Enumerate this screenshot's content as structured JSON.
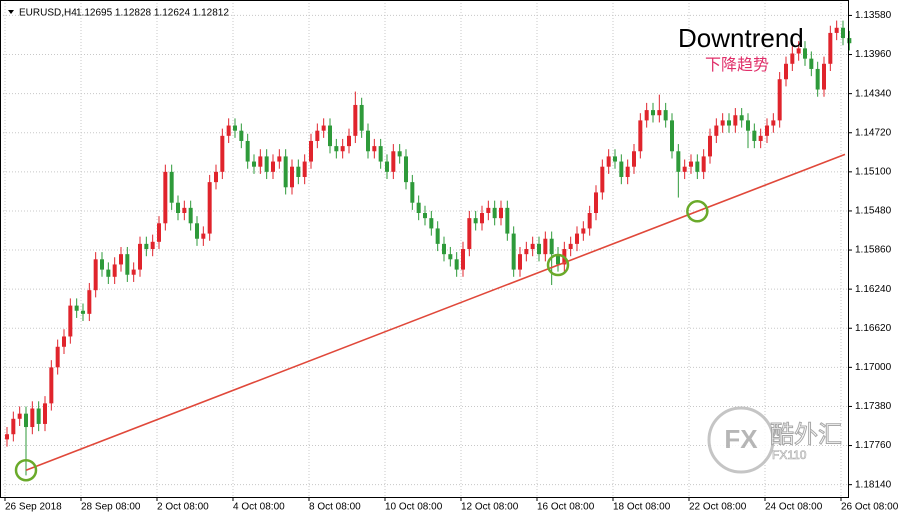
{
  "chart_data": {
    "type": "candlestick",
    "symbol": "EURUSD,H4",
    "quote": "1.12695 1.12828 1.12624 1.12812",
    "annotation": "Downtrend",
    "annotation_cn": "下降趋势",
    "watermark_logo": "FX",
    "watermark_name": "酷外汇",
    "watermark_site": "FX110",
    "up_color": "#2e9a3a",
    "down_color": "#e0242c",
    "trend_color": "#e0483a",
    "grid": true,
    "ylim": [
      1.1343,
      1.1826
    ],
    "yticks": [
      {
        "value": 1.1814,
        "label": "1.18140"
      },
      {
        "value": 1.1776,
        "label": "1.17760"
      },
      {
        "value": 1.1738,
        "label": "1.17380"
      },
      {
        "value": 1.17,
        "label": "1.17000"
      },
      {
        "value": 1.1662,
        "label": "1.16620"
      },
      {
        "value": 1.1624,
        "label": "1.16240"
      },
      {
        "value": 1.1586,
        "label": "1.15860"
      },
      {
        "value": 1.1548,
        "label": "1.15480"
      },
      {
        "value": 1.151,
        "label": "1.15100"
      },
      {
        "value": 1.1472,
        "label": "1.14720"
      },
      {
        "value": 1.1434,
        "label": "1.14340"
      },
      {
        "value": 1.1396,
        "label": "1.13960"
      },
      {
        "value": 1.1358,
        "label": "1.13580"
      }
    ],
    "trendline": {
      "start": 1.18,
      "end": 1.1493
    },
    "categories": [
      "26 Sep 2018",
      null,
      null,
      null,
      null,
      null,
      null,
      null,
      null,
      null,
      null,
      null,
      "28 Sep 08:00",
      null,
      null,
      null,
      null,
      null,
      null,
      null,
      null,
      null,
      null,
      null,
      "2 Oct 08:00",
      null,
      null,
      null,
      null,
      null,
      null,
      null,
      null,
      null,
      null,
      null,
      "4 Oct 08:00",
      null,
      null,
      null,
      null,
      null,
      null,
      null,
      null,
      null,
      null,
      null,
      "8 Oct 08:00",
      null,
      null,
      null,
      null,
      null,
      null,
      null,
      null,
      null,
      null,
      null,
      "10 Oct 08:00",
      null,
      null,
      null,
      null,
      null,
      null,
      null,
      null,
      null,
      null,
      null,
      "12 Oct 08:00",
      null,
      null,
      null,
      null,
      null,
      null,
      null,
      null,
      null,
      null,
      null,
      "16 Oct 08:00",
      null,
      null,
      null,
      null,
      null,
      null,
      null,
      null,
      null,
      null,
      null,
      "18 Oct 08:00",
      null,
      null,
      null,
      null,
      null,
      null,
      null,
      null,
      null,
      null,
      null,
      "22 Oct 08:00",
      null,
      null,
      null,
      null,
      null,
      null,
      null,
      null,
      null,
      null,
      null,
      "24 Oct 08:00",
      null,
      null,
      null,
      null,
      null,
      null,
      null,
      null,
      null,
      null,
      null,
      "26 Oct 08:00",
      null
    ],
    "open": [
      1.177,
      1.1765,
      1.175,
      1.1745,
      1.1758,
      1.174,
      1.1755,
      1.1735,
      1.17,
      1.168,
      1.167,
      1.164,
      1.1645,
      1.1648,
      1.1625,
      1.1595,
      1.1605,
      1.1612,
      1.16,
      1.159,
      1.161,
      1.1605,
      1.158,
      1.1585,
      1.1578,
      1.156,
      1.151,
      1.154,
      1.155,
      1.1545,
      1.156,
      1.1575,
      1.157,
      1.152,
      1.151,
      1.1475,
      1.1465,
      1.147,
      1.148,
      1.15,
      1.1505,
      1.1495,
      1.151,
      1.15,
      1.1495,
      1.1525,
      1.1505,
      1.1515,
      1.15,
      1.148,
      1.147,
      1.1465,
      1.1485,
      1.149,
      1.1485,
      1.1475,
      1.1445,
      1.147,
      1.149,
      1.1485,
      1.15,
      1.151,
      1.149,
      1.1495,
      1.152,
      1.154,
      1.155,
      1.1555,
      1.1565,
      1.158,
      1.159,
      1.1595,
      1.1605,
      1.1585,
      1.1555,
      1.156,
      1.155,
      1.1545,
      1.1555,
      1.1545,
      1.157,
      1.1605,
      1.159,
      1.1585,
      1.158,
      1.159,
      1.1575,
      1.159,
      1.16,
      1.1585,
      1.158,
      1.157,
      1.1565,
      1.155,
      1.153,
      1.1505,
      1.1495,
      1.15,
      1.1515,
      1.1505,
      1.149,
      1.146,
      1.145,
      1.1455,
      1.145,
      1.146,
      1.149,
      1.151,
      1.1505,
      1.15,
      1.151,
      1.1495,
      1.1475,
      1.1465,
      1.146,
      1.1465,
      1.1455,
      1.146,
      1.147,
      1.148,
      1.1475,
      1.1465,
      1.146,
      1.142,
      1.1405,
      1.1395,
      1.139,
      1.14,
      1.141,
      1.143,
      1.1405,
      1.1375,
      1.137,
      1.138
    ],
    "close": [
      1.1765,
      1.175,
      1.1745,
      1.1758,
      1.174,
      1.1755,
      1.1735,
      1.17,
      1.168,
      1.167,
      1.164,
      1.1645,
      1.1648,
      1.1625,
      1.1595,
      1.1605,
      1.1612,
      1.16,
      1.159,
      1.161,
      1.1605,
      1.158,
      1.1585,
      1.1578,
      1.156,
      1.151,
      1.154,
      1.155,
      1.1545,
      1.156,
      1.1575,
      1.157,
      1.152,
      1.151,
      1.1475,
      1.1465,
      1.147,
      1.148,
      1.15,
      1.1505,
      1.1495,
      1.151,
      1.15,
      1.1495,
      1.1525,
      1.1505,
      1.1515,
      1.15,
      1.148,
      1.147,
      1.1465,
      1.1485,
      1.149,
      1.1485,
      1.1475,
      1.1445,
      1.147,
      1.149,
      1.1485,
      1.15,
      1.151,
      1.149,
      1.1495,
      1.152,
      1.154,
      1.155,
      1.1555,
      1.1565,
      1.158,
      1.159,
      1.1595,
      1.1605,
      1.1585,
      1.1555,
      1.156,
      1.155,
      1.1545,
      1.1555,
      1.1545,
      1.157,
      1.1605,
      1.159,
      1.1585,
      1.158,
      1.159,
      1.1575,
      1.159,
      1.16,
      1.1585,
      1.158,
      1.157,
      1.1565,
      1.155,
      1.153,
      1.1505,
      1.1495,
      1.15,
      1.1515,
      1.1505,
      1.149,
      1.146,
      1.145,
      1.1455,
      1.145,
      1.146,
      1.149,
      1.151,
      1.1505,
      1.15,
      1.151,
      1.1495,
      1.1475,
      1.1465,
      1.146,
      1.1465,
      1.1455,
      1.146,
      1.147,
      1.148,
      1.1475,
      1.1465,
      1.146,
      1.142,
      1.1405,
      1.1395,
      1.139,
      1.14,
      1.141,
      1.143,
      1.1405,
      1.1375,
      1.137,
      1.138,
      1.1385
    ],
    "high": [
      1.1777,
      1.1772,
      1.1757,
      1.1805,
      1.1765,
      1.1762,
      1.1762,
      1.1742,
      1.1707,
      1.1687,
      1.1677,
      1.1652,
      1.1655,
      1.1655,
      1.1632,
      1.1612,
      1.1619,
      1.1619,
      1.1607,
      1.1617,
      1.1617,
      1.1612,
      1.1592,
      1.1592,
      1.1585,
      1.1567,
      1.1547,
      1.1557,
      1.1557,
      1.1567,
      1.1582,
      1.1582,
      1.1577,
      1.1527,
      1.1517,
      1.1482,
      1.1477,
      1.1487,
      1.1507,
      1.1512,
      1.1512,
      1.1517,
      1.1517,
      1.1507,
      1.1532,
      1.1532,
      1.1522,
      1.1522,
      1.1507,
      1.1487,
      1.1477,
      1.1492,
      1.1497,
      1.1497,
      1.1492,
      1.1482,
      1.1477,
      1.1497,
      1.1497,
      1.1507,
      1.1517,
      1.1517,
      1.1502,
      1.1527,
      1.1547,
      1.1557,
      1.1562,
      1.1572,
      1.1587,
      1.1597,
      1.1602,
      1.1612,
      1.1612,
      1.1592,
      1.1567,
      1.1567,
      1.1557,
      1.1562,
      1.1562,
      1.1577,
      1.1612,
      1.1612,
      1.1597,
      1.1592,
      1.1597,
      1.1597,
      1.162,
      1.1607,
      1.1607,
      1.1592,
      1.1587,
      1.1577,
      1.1572,
      1.1557,
      1.1537,
      1.1512,
      1.1507,
      1.1522,
      1.1522,
      1.1512,
      1.1497,
      1.1467,
      1.1462,
      1.1462,
      1.1467,
      1.1497,
      1.1535,
      1.1517,
      1.1512,
      1.1517,
      1.1517,
      1.1502,
      1.1482,
      1.1472,
      1.1472,
      1.1472,
      1.1467,
      1.1487,
      1.1487,
      1.1487,
      1.1482,
      1.1472,
      1.1467,
      1.1427,
      1.1412,
      1.1402,
      1.1407,
      1.1417,
      1.1437,
      1.1437,
      1.1412,
      1.1382,
      1.1387,
      1.1392
    ],
    "low": [
      1.1758,
      1.1743,
      1.1738,
      1.1738,
      1.1733,
      1.1733,
      1.1728,
      1.1693,
      1.1673,
      1.1663,
      1.1633,
      1.1633,
      1.1638,
      1.1618,
      1.1588,
      1.1588,
      1.1598,
      1.1593,
      1.1583,
      1.1583,
      1.1598,
      1.1573,
      1.1573,
      1.1571,
      1.1553,
      1.1503,
      1.1503,
      1.1533,
      1.1538,
      1.1538,
      1.1553,
      1.1563,
      1.1513,
      1.1503,
      1.1468,
      1.1458,
      1.1458,
      1.1463,
      1.1473,
      1.1493,
      1.1488,
      1.1488,
      1.1493,
      1.1488,
      1.1488,
      1.1498,
      1.1498,
      1.1493,
      1.1473,
      1.1463,
      1.1458,
      1.1458,
      1.1478,
      1.1478,
      1.1468,
      1.1432,
      1.1438,
      1.1463,
      1.1478,
      1.1478,
      1.1493,
      1.1483,
      1.1483,
      1.1488,
      1.1513,
      1.1533,
      1.1543,
      1.1548,
      1.1558,
      1.1573,
      1.1583,
      1.1588,
      1.1578,
      1.1548,
      1.1548,
      1.1543,
      1.1538,
      1.1538,
      1.1538,
      1.1538,
      1.1563,
      1.1583,
      1.1578,
      1.1573,
      1.1573,
      1.1568,
      1.1568,
      1.1583,
      1.1578,
      1.1573,
      1.1563,
      1.1558,
      1.1543,
      1.1523,
      1.1498,
      1.1488,
      1.1488,
      1.1493,
      1.1498,
      1.1483,
      1.1453,
      1.1443,
      1.1443,
      1.1435,
      1.1443,
      1.1453,
      1.1483,
      1.1498,
      1.1493,
      1.1493,
      1.1488,
      1.1468,
      1.1458,
      1.1453,
      1.1453,
      1.1448,
      1.1448,
      1.1453,
      1.1463,
      1.1468,
      1.1458,
      1.1453,
      1.1413,
      1.1398,
      1.1388,
      1.1383,
      1.1383,
      1.1393,
      1.1403,
      1.1398,
      1.1368,
      1.1363,
      1.1363,
      1.1373
    ]
  }
}
